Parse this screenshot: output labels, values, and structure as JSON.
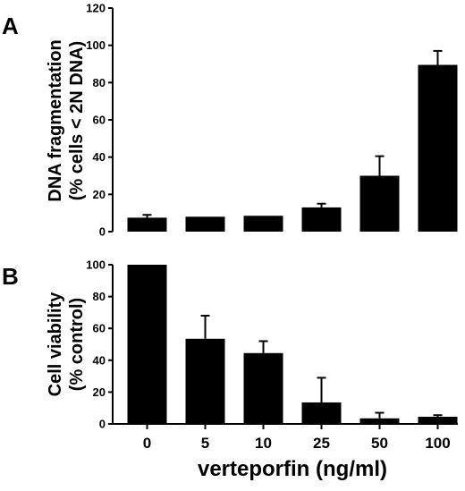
{
  "chart_data": [
    {
      "panel_label": "A",
      "type": "bar",
      "categories": [
        "0",
        "5",
        "10",
        "25",
        "50",
        "100"
      ],
      "values": [
        7.5,
        8,
        8.5,
        13,
        30,
        89.5
      ],
      "errors": [
        1.5,
        0,
        0,
        2,
        10.5,
        7.5
      ],
      "ylabel_line1": "DNA fragmentation",
      "ylabel_line2": "(% cells < 2N DNA)",
      "ylim": [
        0,
        120
      ],
      "yticks": [
        "0",
        "20",
        "40",
        "60",
        "80",
        "100",
        "120"
      ],
      "bar_color": "#000000"
    },
    {
      "panel_label": "B",
      "type": "bar",
      "categories": [
        "0",
        "5",
        "10",
        "25",
        "50",
        "100"
      ],
      "values": [
        100,
        53.5,
        44.5,
        13.5,
        3.5,
        4.5
      ],
      "errors": [
        0,
        14.5,
        7.5,
        15.5,
        3.5,
        1
      ],
      "ylabel_line1": "Cell viability",
      "ylabel_line2": "(% control)",
      "ylim": [
        0,
        100
      ],
      "yticks": [
        "0",
        "20",
        "40",
        "60",
        "80",
        "100"
      ],
      "xlabel": "verteporfin (ng/ml)",
      "bar_color": "#000000"
    }
  ]
}
